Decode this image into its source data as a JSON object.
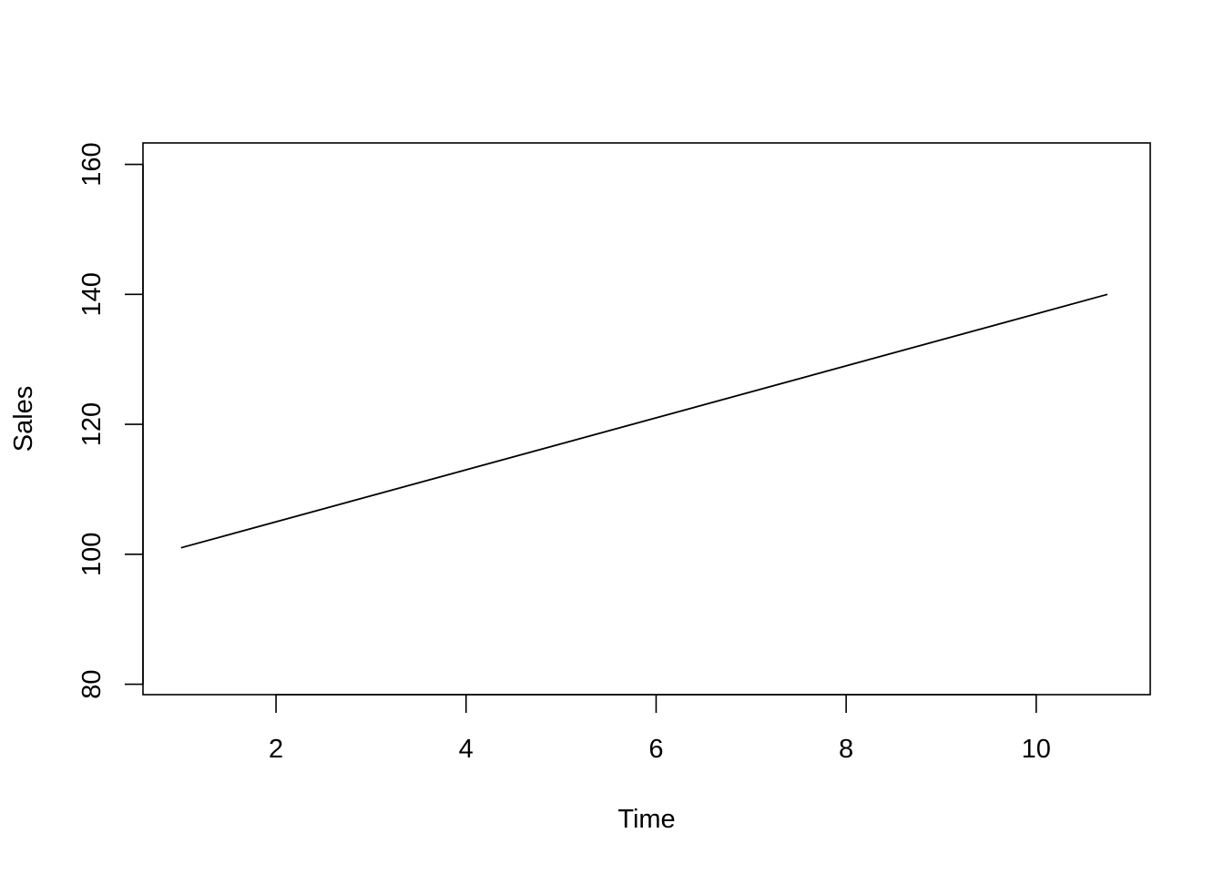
{
  "chart_data": {
    "type": "line",
    "title": "",
    "xlabel": "Time",
    "ylabel": "Sales",
    "xlim": [
      0.6,
      11.2
    ],
    "ylim": [
      78.4,
      163.3
    ],
    "xticks": [
      2,
      4,
      6,
      8,
      10
    ],
    "yticks": [
      80,
      100,
      120,
      140,
      160
    ],
    "grid": false,
    "legend": "none",
    "series": [
      {
        "x": [
          1,
          10.75
        ],
        "y": [
          101,
          140
        ],
        "color": "#000000"
      }
    ]
  }
}
